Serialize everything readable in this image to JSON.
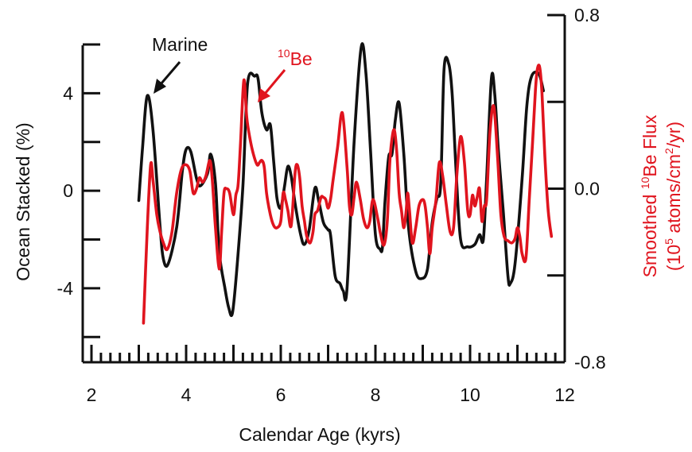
{
  "chart_data": {
    "type": "line",
    "xlabel": "Calendar Age (kyrs)",
    "xlim": [
      2,
      12
    ],
    "x_ticks": [
      "2",
      "4",
      "6",
      "8",
      "10",
      "12"
    ],
    "left_axis": {
      "label": "Ocean Stacked (%)",
      "ylim": [
        -7,
        6
      ],
      "ticks": [
        "4",
        "0",
        "-4"
      ],
      "color": "#111111"
    },
    "right_axis": {
      "label_line1": "Smoothed ",
      "label_line1_sup": "10",
      "label_line1_end": "Be Flux",
      "label_line2_start": "(10",
      "label_line2_sup": "5",
      "label_line2_mid": " atoms/cm",
      "label_line2_sup2": "2",
      "label_line2_end": "/yr)",
      "ylim": [
        -0.8,
        0.8
      ],
      "ticks": [
        "0.8",
        "0.0",
        "-0.8"
      ],
      "color": "#e0141e"
    },
    "annotations": {
      "marine": "Marine",
      "be_sup": "10",
      "be_text": "Be"
    },
    "series": [
      {
        "name": "Marine",
        "axis": "left",
        "color": "#111111",
        "x": [
          3.0,
          3.08,
          3.18,
          3.3,
          3.45,
          3.52,
          3.62,
          3.8,
          3.92,
          4.0,
          4.1,
          4.22,
          4.3,
          4.45,
          4.52,
          4.62,
          4.7,
          4.82,
          4.9,
          4.98,
          5.08,
          5.2,
          5.3,
          5.45,
          5.52,
          5.6,
          5.7,
          5.78,
          5.85,
          5.92,
          6.0,
          6.08,
          6.15,
          6.22,
          6.3,
          6.42,
          6.5,
          6.6,
          6.72,
          6.8,
          6.9,
          7.0,
          7.05,
          7.15,
          7.25,
          7.32,
          7.4,
          7.55,
          7.7,
          7.8,
          7.9,
          8.0,
          8.1,
          8.15,
          8.2,
          8.28,
          8.35,
          8.42,
          8.5,
          8.6,
          8.7,
          8.85,
          8.98,
          9.1,
          9.2,
          9.3,
          9.38,
          9.45,
          9.55,
          9.62,
          9.7,
          9.8,
          9.95,
          10.1,
          10.2,
          10.28,
          10.35,
          10.45,
          10.52,
          10.6,
          10.7,
          10.8,
          10.85,
          10.95,
          11.1,
          11.2,
          11.3,
          11.45,
          11.55
        ],
        "y": [
          -0.4,
          1.8,
          3.9,
          2.5,
          -1.5,
          -2.8,
          -3.0,
          -1.5,
          0.8,
          1.7,
          1.6,
          0.5,
          0.2,
          0.7,
          1.5,
          0.3,
          -2.5,
          -4.0,
          -4.8,
          -5.0,
          -3.0,
          0.2,
          4.4,
          4.7,
          4.6,
          3.2,
          2.5,
          2.7,
          1.2,
          -0.3,
          -0.7,
          0.2,
          1.0,
          0.6,
          -0.5,
          -1.8,
          -2.2,
          -1.6,
          0.1,
          -0.4,
          -1.3,
          -1.6,
          -1.8,
          -3.5,
          -3.8,
          -4.1,
          -4.0,
          2.0,
          5.9,
          4.8,
          1.5,
          -1.8,
          -2.4,
          -2.3,
          -0.5,
          1.4,
          1.5,
          2.9,
          3.6,
          1.5,
          -1.5,
          -3.3,
          -3.6,
          -3.2,
          -1.3,
          -0.3,
          0.3,
          5.0,
          5.2,
          4.0,
          1.0,
          -2.0,
          -2.3,
          -2.2,
          -1.8,
          -2.0,
          0.5,
          4.6,
          4.0,
          1.6,
          -0.8,
          -3.5,
          -3.8,
          -3.0,
          0.5,
          3.5,
          4.7,
          4.8,
          4.1
        ]
      },
      {
        "name": "10Be",
        "axis": "right",
        "color": "#e0141e",
        "x": [
          3.1,
          3.18,
          3.25,
          3.3,
          3.38,
          3.45,
          3.52,
          3.6,
          3.7,
          3.8,
          3.9,
          4.0,
          4.08,
          4.15,
          4.22,
          4.28,
          4.35,
          4.42,
          4.5,
          4.55,
          4.62,
          4.7,
          4.75,
          4.8,
          4.85,
          4.92,
          5.0,
          5.05,
          5.1,
          5.15,
          5.22,
          5.28,
          5.35,
          5.42,
          5.5,
          5.55,
          5.6,
          5.65,
          5.7,
          5.78,
          5.85,
          5.92,
          6.0,
          6.05,
          6.1,
          6.15,
          6.22,
          6.3,
          6.35,
          6.4,
          6.45,
          6.5,
          6.55,
          6.62,
          6.68,
          6.72,
          6.78,
          6.85,
          6.9,
          6.95,
          7.0,
          7.05,
          7.1,
          7.2,
          7.3,
          7.4,
          7.45,
          7.5,
          7.55,
          7.6,
          7.68,
          7.75,
          7.82,
          7.88,
          7.95,
          8.05,
          8.1,
          8.18,
          8.25,
          8.3,
          8.35,
          8.4,
          8.45,
          8.5,
          8.55,
          8.6,
          8.65,
          8.68,
          8.72,
          8.78,
          8.85,
          8.92,
          9.0,
          9.05,
          9.1,
          9.15,
          9.2,
          9.28,
          9.35,
          9.42,
          9.5,
          9.58,
          9.65,
          9.72,
          9.8,
          9.88,
          9.95,
          10.0,
          10.05,
          10.1,
          10.15,
          10.2,
          10.25,
          10.3,
          10.35,
          10.42,
          10.5,
          10.58,
          10.65,
          10.72,
          10.8,
          10.88,
          10.95,
          11.0,
          11.05,
          11.1,
          11.18,
          11.25,
          11.32,
          11.38,
          11.42,
          11.47,
          11.52,
          11.58,
          11.65,
          11.72
        ],
        "y": [
          -0.62,
          -0.18,
          0.11,
          0.04,
          -0.12,
          -0.2,
          -0.25,
          -0.28,
          -0.2,
          -0.02,
          0.09,
          0.11,
          0.08,
          -0.02,
          0.0,
          0.05,
          0.03,
          0.06,
          0.13,
          0.05,
          -0.18,
          -0.37,
          -0.2,
          -0.02,
          0.0,
          -0.02,
          -0.12,
          -0.03,
          0.02,
          0.21,
          0.5,
          0.33,
          0.23,
          0.16,
          0.11,
          0.12,
          0.13,
          0.1,
          -0.02,
          -0.12,
          -0.17,
          -0.18,
          -0.15,
          -0.02,
          -0.05,
          -0.1,
          -0.17,
          0.07,
          0.11,
          0.05,
          -0.08,
          -0.15,
          -0.22,
          -0.25,
          -0.2,
          -0.12,
          -0.1,
          -0.04,
          -0.04,
          -0.05,
          -0.09,
          -0.05,
          0.03,
          0.19,
          0.35,
          0.1,
          -0.08,
          -0.12,
          -0.04,
          0.03,
          -0.05,
          -0.14,
          -0.18,
          -0.15,
          -0.05,
          -0.14,
          -0.2,
          -0.26,
          -0.15,
          0.11,
          0.23,
          0.27,
          0.17,
          -0.02,
          -0.1,
          -0.18,
          -0.1,
          -0.02,
          -0.1,
          -0.25,
          -0.18,
          -0.08,
          -0.05,
          -0.08,
          -0.18,
          -0.3,
          -0.18,
          -0.05,
          0.12,
          0.06,
          -0.08,
          -0.2,
          -0.18,
          0.06,
          0.24,
          0.12,
          -0.1,
          -0.12,
          -0.03,
          -0.08,
          -0.04,
          0.0,
          -0.15,
          -0.08,
          -0.05,
          0.26,
          0.38,
          0.15,
          -0.12,
          -0.22,
          -0.24,
          -0.25,
          -0.23,
          -0.18,
          -0.22,
          -0.3,
          -0.32,
          -0.05,
          0.21,
          0.45,
          0.55,
          0.56,
          0.44,
          0.15,
          -0.1,
          -0.22
        ]
      }
    ]
  }
}
